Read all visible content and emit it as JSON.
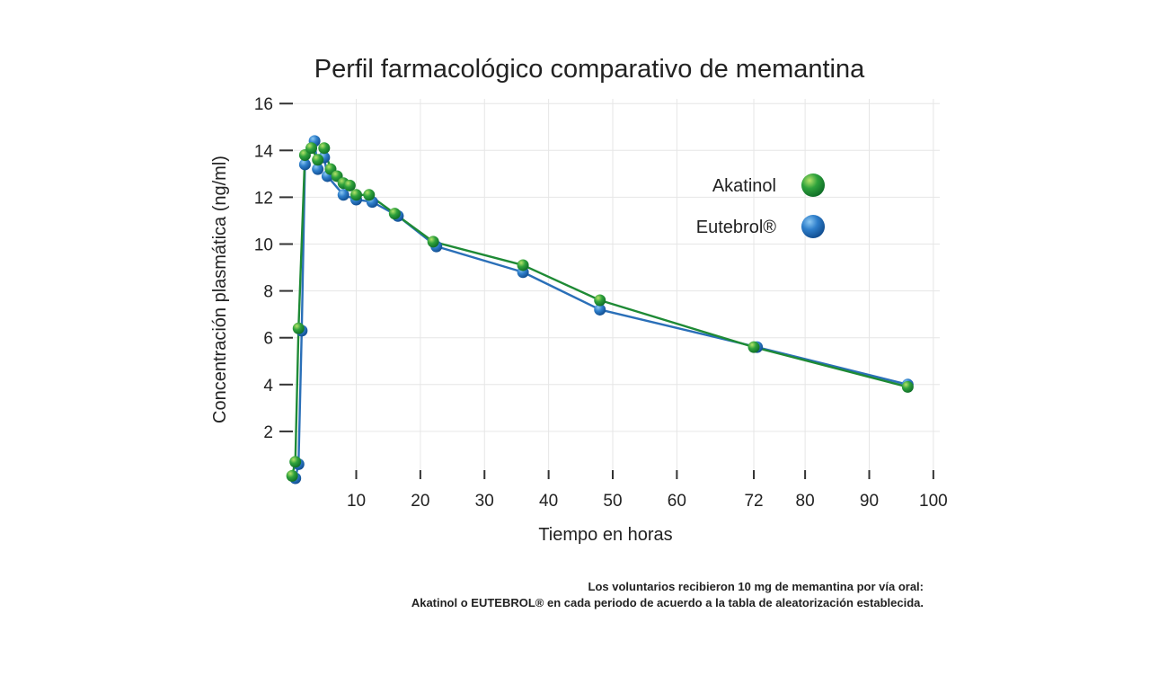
{
  "chart_data": {
    "type": "line",
    "title": "Perfil farmacológico comparativo de memantina",
    "xlabel": "Tiempo en horas",
    "ylabel": "Concentración plasmática (ng/ml)",
    "xlim": [
      -1,
      101
    ],
    "ylim": [
      0,
      16.2
    ],
    "x_ticks": [
      10,
      20,
      30,
      40,
      50,
      60,
      72,
      80,
      90,
      100
    ],
    "y_ticks": [
      2,
      4,
      6,
      8,
      10,
      12,
      14,
      16
    ],
    "grid": true,
    "legend_position": "right",
    "series": [
      {
        "name": "Akatinol",
        "color": "#2a9a3a",
        "line_color": "#1e8a35",
        "x": [
          0,
          0.5,
          1,
          2,
          3,
          4,
          5,
          6,
          7,
          8,
          9,
          10,
          12,
          16,
          22,
          36,
          48,
          72,
          96
        ],
        "y": [
          0.1,
          0.7,
          6.4,
          13.8,
          14.1,
          13.6,
          14.1,
          13.2,
          12.9,
          12.6,
          12.5,
          12.1,
          12.1,
          11.3,
          10.1,
          9.1,
          7.6,
          5.6,
          3.9
        ]
      },
      {
        "name": "Eutebrol®",
        "color": "#2a78c5",
        "line_color": "#2a6fb8",
        "x": [
          0.5,
          1,
          1.5,
          2,
          3.5,
          4,
          5,
          5.5,
          8,
          10,
          12.5,
          16.5,
          22.5,
          36,
          48,
          72.5,
          96
        ],
        "y": [
          0.0,
          0.6,
          6.3,
          13.4,
          14.4,
          13.2,
          13.7,
          12.9,
          12.1,
          11.9,
          11.8,
          11.2,
          9.9,
          8.8,
          7.2,
          5.6,
          4.0
        ]
      }
    ],
    "legend": [
      {
        "label": "Akatinol",
        "color": "#2a9a3a"
      },
      {
        "label": "Eutebrol®",
        "color": "#2a78c5"
      }
    ]
  },
  "notes": {
    "line1": "Los voluntarios recibieron 10 mg de memantina por vía oral:",
    "line2": "Akatinol o EUTEBROL®  en cada periodo de acuerdo a la tabla de aleatorización establecida."
  }
}
